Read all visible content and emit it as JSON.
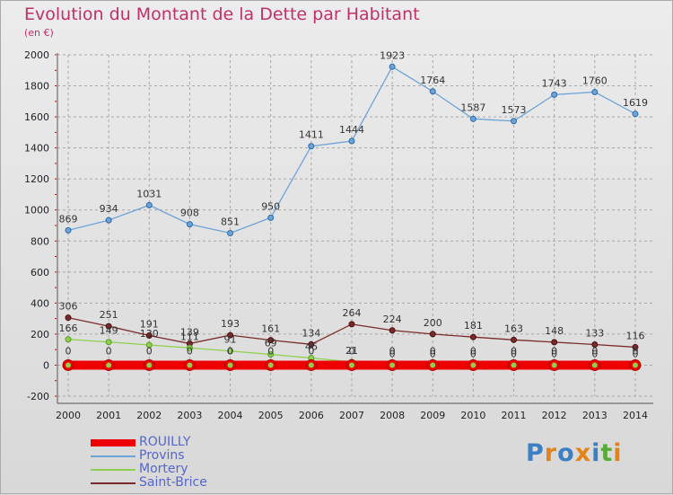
{
  "header": {
    "title": "Evolution du Montant de la Dette par Habitant",
    "subtitle": "(en €)"
  },
  "logo": {
    "text": "Proxiti",
    "letter_colors": [
      "#3b7fc4",
      "#e2841b",
      "#3b7fc4",
      "#e2841b",
      "#3b7fc4",
      "#5aaa3a",
      "#e2841b"
    ]
  },
  "colors": {
    "title": "#c0306a",
    "legend_text": "#5566cc",
    "grid": "#a8a8a8",
    "axis_tick_red": "#cc0000"
  },
  "chart_data": {
    "type": "line",
    "x": [
      "2000",
      "2001",
      "2002",
      "2003",
      "2004",
      "2005",
      "2006",
      "2007",
      "2008",
      "2009",
      "2010",
      "2011",
      "2012",
      "2013",
      "2014"
    ],
    "ylim": [
      -200,
      2000
    ],
    "yticks": [
      -200,
      0,
      200,
      400,
      600,
      800,
      1000,
      1200,
      1400,
      1600,
      1800,
      2000
    ],
    "grid": true,
    "legend_position": "bottom-left",
    "series": [
      {
        "name": "ROUILLY",
        "color": "#ee0000",
        "values": [
          0,
          0,
          0,
          0,
          0,
          0,
          0,
          0,
          0,
          0,
          0,
          0,
          0,
          0,
          0
        ],
        "labels": [
          "0",
          "0",
          "0",
          "0",
          "0",
          "0",
          "0",
          "0",
          "0",
          "0",
          "0",
          "0",
          "0",
          "0",
          "0"
        ]
      },
      {
        "name": "Provins",
        "color": "#6ea3d8",
        "values": [
          869,
          934,
          1031,
          908,
          851,
          950,
          1411,
          1444,
          1923,
          1764,
          1587,
          1573,
          1743,
          1760,
          1619
        ],
        "labels": [
          "869",
          "934",
          "1031",
          "908",
          "851",
          "950",
          "1411",
          "1444",
          "1923",
          "1764",
          "1587",
          "1573",
          "1743",
          "1760",
          "1619"
        ]
      },
      {
        "name": "Mortery",
        "color": "#8ed04e",
        "values": [
          166,
          149,
          130,
          111,
          91,
          69,
          46,
          21,
          0,
          0,
          0,
          0,
          0,
          0,
          0
        ],
        "labels": [
          "166",
          "149",
          "130",
          "111",
          "91",
          "69",
          "46",
          "21",
          "0",
          "0",
          "0",
          "0",
          "0",
          "0",
          "0"
        ]
      },
      {
        "name": "Saint-Brice",
        "color": "#7a2a2a",
        "values": [
          306,
          251,
          191,
          139,
          193,
          161,
          134,
          264,
          224,
          200,
          181,
          163,
          148,
          133,
          116
        ],
        "labels": [
          "306",
          "251",
          "191",
          "139",
          "193",
          "161",
          "134",
          "264",
          "224",
          "200",
          "181",
          "163",
          "148",
          "133",
          "116"
        ]
      }
    ]
  }
}
